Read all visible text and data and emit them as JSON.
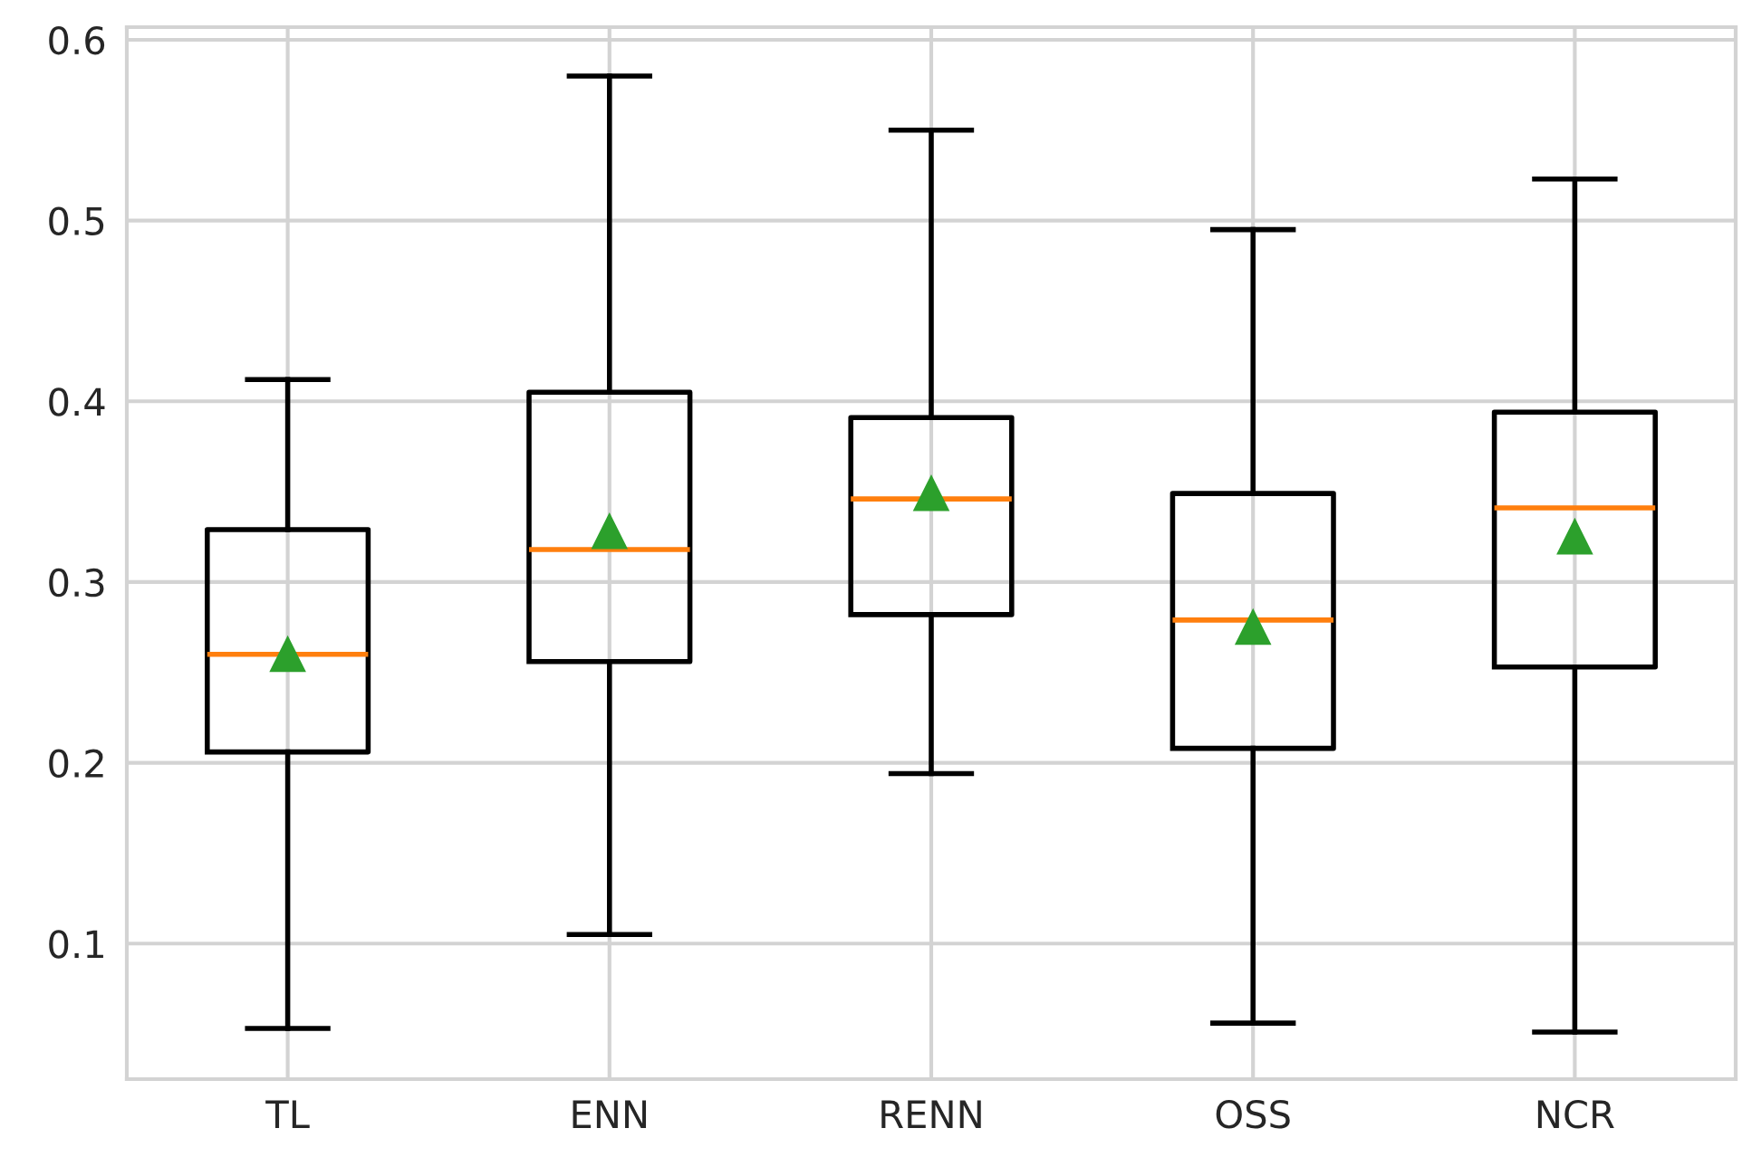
{
  "chart_data": {
    "type": "box",
    "categories": [
      "TL",
      "ENN",
      "RENN",
      "OSS",
      "NCR"
    ],
    "boxes": [
      {
        "low": 0.053,
        "q1": 0.206,
        "median": 0.26,
        "q3": 0.329,
        "high": 0.412,
        "mean": 0.26
      },
      {
        "low": 0.105,
        "q1": 0.256,
        "median": 0.318,
        "q3": 0.405,
        "high": 0.58,
        "mean": 0.328
      },
      {
        "low": 0.194,
        "q1": 0.282,
        "median": 0.346,
        "q3": 0.391,
        "high": 0.55,
        "mean": 0.349
      },
      {
        "low": 0.056,
        "q1": 0.208,
        "median": 0.279,
        "q3": 0.349,
        "high": 0.495,
        "mean": 0.275
      },
      {
        "low": 0.051,
        "q1": 0.253,
        "median": 0.341,
        "q3": 0.394,
        "high": 0.523,
        "mean": 0.325
      }
    ],
    "color": "#000000",
    "marker": "triangle",
    "ylim": [
      0.025,
      0.607
    ],
    "yticks": [
      0.1,
      0.2,
      0.3,
      0.4,
      0.5,
      0.6
    ],
    "grid": true,
    "legend": false
  }
}
